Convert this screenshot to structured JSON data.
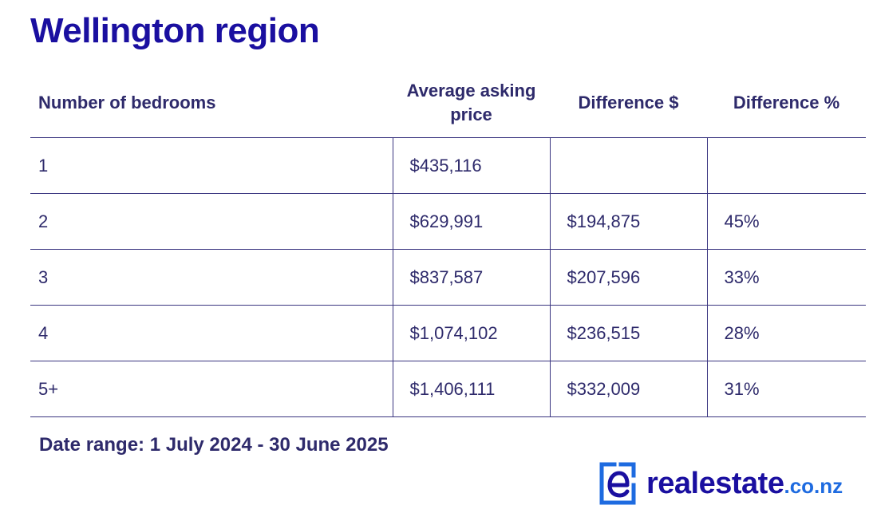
{
  "title": "Wellington region",
  "table": {
    "headers": [
      "Number of bedrooms",
      "Average asking price",
      "Difference $",
      "Difference %"
    ],
    "rows": [
      [
        "1",
        "$435,116",
        "",
        ""
      ],
      [
        "2",
        "$629,991",
        "$194,875",
        "45%"
      ],
      [
        "3",
        "$837,587",
        "$207,596",
        "33%"
      ],
      [
        "4",
        "$1,074,102",
        "$236,515",
        "28%"
      ],
      [
        "5+",
        "$1,406,111",
        "$332,009",
        "31%"
      ]
    ]
  },
  "footer": {
    "date_range": "Date range: 1 July 2024 - 30 June 2025"
  },
  "logo": {
    "name": "realestate",
    "tld": ".co.nz",
    "icon": "re-logo-icon"
  },
  "colors": {
    "title": "#1a0fa0",
    "text": "#2e2a6b",
    "rule": "#3a3580",
    "tld": "#1e6be0"
  }
}
